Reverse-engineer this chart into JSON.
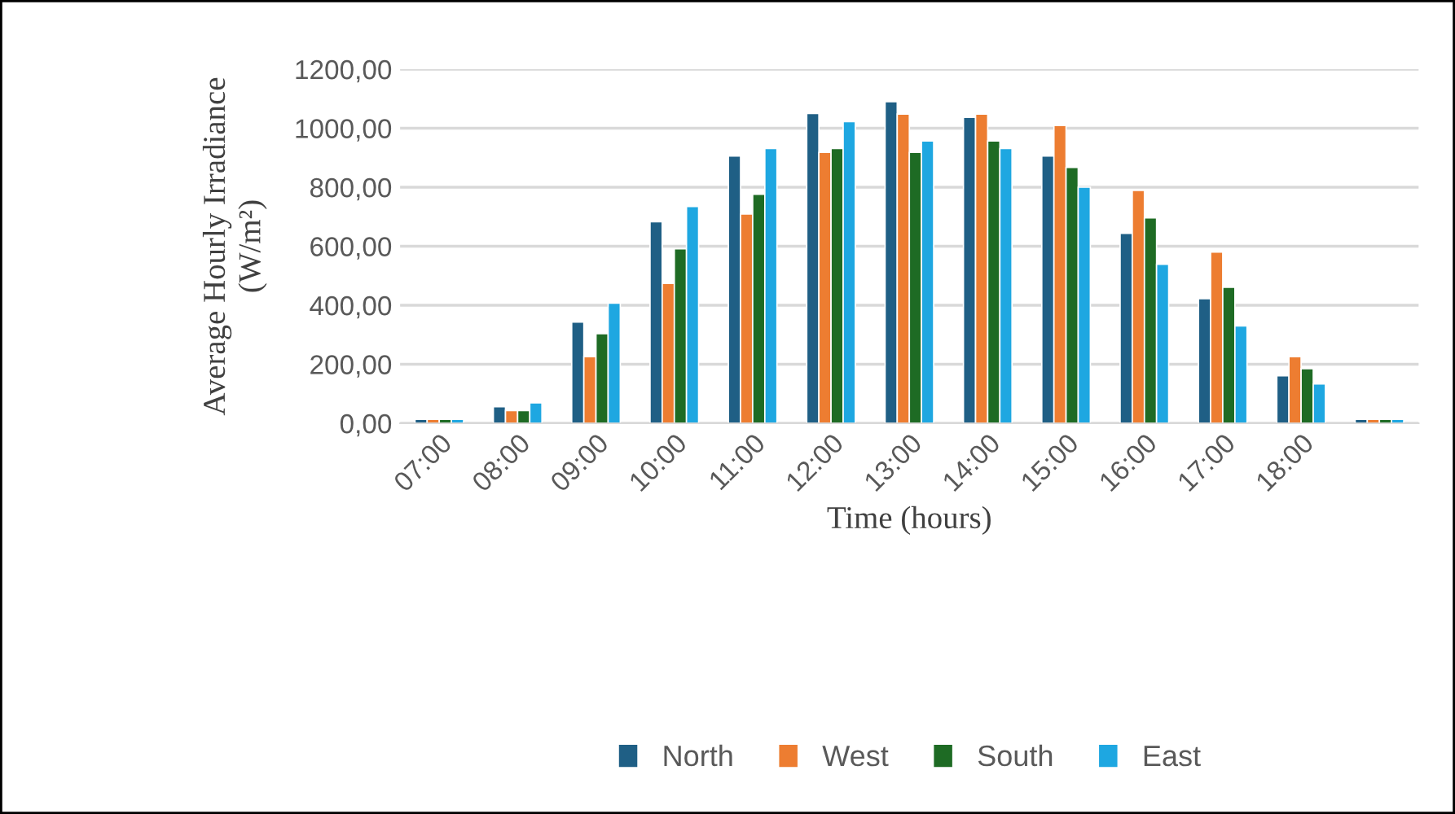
{
  "chart_data": {
    "type": "bar",
    "xlabel": "Time (hours)",
    "ylabel": "Average Hourly Irradiance\n(W/m²)",
    "categories": [
      "07:00",
      "08:00",
      "09:00",
      "10:00",
      "11:00",
      "12:00",
      "13:00",
      "14:00",
      "15:00",
      "16:00",
      "17:00",
      "18:00",
      null
    ],
    "series": [
      {
        "name": "North",
        "color": "#1f5f85",
        "values": [
          13,
          56,
          343,
          683,
          906,
          1050,
          1090,
          1037,
          906,
          644,
          422,
          161,
          13
        ]
      },
      {
        "name": "West",
        "color": "#ed7d31",
        "values": [
          13,
          43,
          226,
          474,
          709,
          918,
          1048,
          1048,
          1009,
          789,
          580,
          226,
          13
        ]
      },
      {
        "name": "South",
        "color": "#1e6b24",
        "values": [
          13,
          43,
          304,
          591,
          776,
          931,
          918,
          957,
          867,
          696,
          461,
          185,
          13
        ]
      },
      {
        "name": "East",
        "color": "#1ea7e1",
        "values": [
          13,
          69,
          407,
          735,
          931,
          1022,
          957,
          931,
          800,
          539,
          330,
          133,
          13
        ]
      }
    ],
    "ylim": [
      0,
      1200
    ],
    "yticks": [
      {
        "value": 0,
        "label": "0,00"
      },
      {
        "value": 200,
        "label": "200,00"
      },
      {
        "value": 400,
        "label": "400,00"
      },
      {
        "value": 600,
        "label": "600,00"
      },
      {
        "value": 800,
        "label": "800,00"
      },
      {
        "value": 1000,
        "label": "1000,00"
      },
      {
        "value": 1200,
        "label": "1200,00"
      }
    ],
    "grid": "y",
    "legend": "bottom"
  }
}
